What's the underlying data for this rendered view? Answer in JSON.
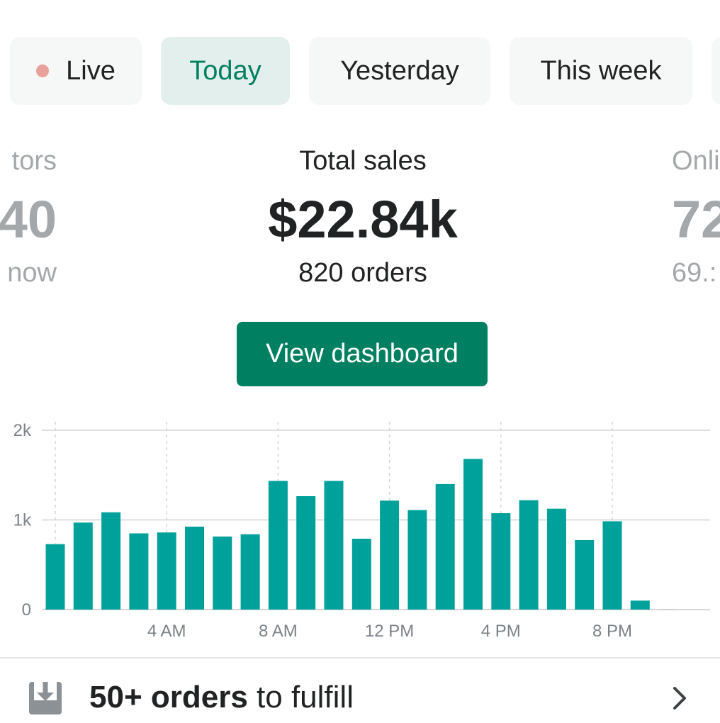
{
  "tabs": [
    {
      "label": "Live",
      "active": false,
      "has_dot": true
    },
    {
      "label": "Today",
      "active": true
    },
    {
      "label": "Yesterday",
      "active": false
    },
    {
      "label": "This week",
      "active": false
    }
  ],
  "metrics": {
    "left": {
      "label": "tors",
      "value": "40",
      "sub": "now"
    },
    "main": {
      "label": "Total sales",
      "value": "$22.84k",
      "sub": "820 orders"
    },
    "right": {
      "label": "Onli",
      "value": "72",
      "sub": "69.:"
    }
  },
  "button": {
    "label": "View dashboard"
  },
  "chart_data": {
    "type": "bar",
    "y_ticks": [
      "2k",
      "1k",
      "0"
    ],
    "ylim": [
      0,
      2000
    ],
    "x_tick_labels": [
      "4 AM",
      "8 AM",
      "12 PM",
      "4 PM",
      "8 PM"
    ],
    "values": [
      730,
      970,
      1085,
      850,
      860,
      925,
      815,
      840,
      1435,
      1265,
      1435,
      790,
      1215,
      1110,
      1400,
      1680,
      1075,
      1220,
      1125,
      775,
      985,
      100,
      0
    ],
    "color": "#00a19a"
  },
  "footer": {
    "bold": "50+ orders",
    "rest": " to fulfill"
  },
  "colors": {
    "accent": "#008060",
    "bar": "#00a19a"
  }
}
